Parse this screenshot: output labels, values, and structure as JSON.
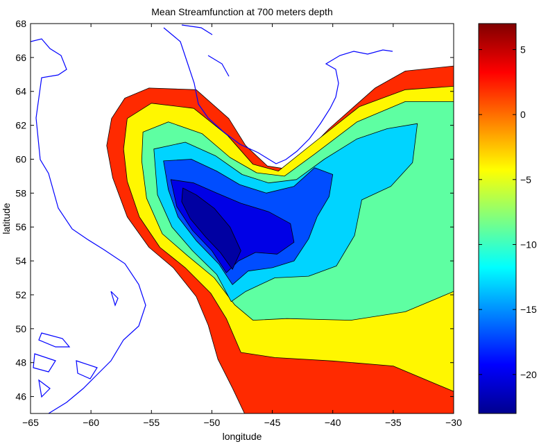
{
  "chart_data": {
    "type": "heatmap",
    "title": "Mean Streamfunction at 700 meters depth",
    "xlabel": "longitude",
    "ylabel": "latitude",
    "xlim": [
      -65,
      -30
    ],
    "ylim": [
      45,
      68
    ],
    "xticks": [
      -65,
      -60,
      -55,
      -50,
      -45,
      -40,
      -35,
      -30
    ],
    "yticks": [
      46,
      48,
      50,
      52,
      54,
      56,
      58,
      60,
      62,
      64,
      66,
      68
    ],
    "colorbar": {
      "range": [
        -23,
        7
      ],
      "ticks": [
        5,
        0,
        -5,
        -10,
        -15,
        -20
      ],
      "colormap": "jet"
    },
    "contour_regions": [
      {
        "level": 2,
        "polygon": [
          [
            -58.3,
            62.4
          ],
          [
            -57.2,
            63.6
          ],
          [
            -55.2,
            64.2
          ],
          [
            -51.3,
            64.1
          ],
          [
            -48.6,
            62.4
          ],
          [
            -47.2,
            60.8
          ],
          [
            -45.4,
            59.6
          ],
          [
            -43.6,
            59.4
          ],
          [
            -40.3,
            61.8
          ],
          [
            -36.5,
            64.2
          ],
          [
            -34,
            65.2
          ],
          [
            -30,
            65.5
          ],
          [
            -30,
            45
          ],
          [
            -47.3,
            45
          ],
          [
            -48.3,
            46.5
          ],
          [
            -49.5,
            48.2
          ],
          [
            -50.3,
            50.2
          ],
          [
            -51.3,
            51.9
          ],
          [
            -53.2,
            53.6
          ],
          [
            -55.2,
            54.8
          ],
          [
            -57,
            56.6
          ],
          [
            -58.2,
            58.9
          ],
          [
            -58.7,
            60.8
          ]
        ]
      },
      {
        "level": -4,
        "polygon": [
          [
            -57,
            62.4
          ],
          [
            -55,
            63.3
          ],
          [
            -51.5,
            63
          ],
          [
            -48.7,
            61.4
          ],
          [
            -46.6,
            59.7
          ],
          [
            -44.5,
            59.3
          ],
          [
            -41.7,
            60.9
          ],
          [
            -37.8,
            63.1
          ],
          [
            -34,
            64.1
          ],
          [
            -30,
            64.3
          ],
          [
            -30,
            46.3
          ],
          [
            -35,
            47.8
          ],
          [
            -40,
            48.1
          ],
          [
            -44.8,
            48.3
          ],
          [
            -47.6,
            48.6
          ],
          [
            -48.8,
            50.6
          ],
          [
            -50.1,
            52.1
          ],
          [
            -52.2,
            53.6
          ],
          [
            -54.3,
            54.8
          ],
          [
            -56,
            56.6
          ],
          [
            -57,
            58.7
          ],
          [
            -57.3,
            60.6
          ]
        ]
      },
      {
        "level": -9,
        "polygon": [
          [
            -55.7,
            61.6
          ],
          [
            -53.6,
            62.2
          ],
          [
            -50.8,
            61.5
          ],
          [
            -48.5,
            60.1
          ],
          [
            -46.3,
            59.2
          ],
          [
            -44,
            59
          ],
          [
            -41.5,
            60.3
          ],
          [
            -38,
            62.2
          ],
          [
            -34,
            63.4
          ],
          [
            -30,
            63.4
          ],
          [
            -30,
            52.2
          ],
          [
            -34,
            51
          ],
          [
            -38.5,
            50.5
          ],
          [
            -43.8,
            50.6
          ],
          [
            -46.6,
            50.5
          ],
          [
            -48.1,
            51.4
          ],
          [
            -49.8,
            53
          ],
          [
            -52,
            54.3
          ],
          [
            -54.1,
            55.6
          ],
          [
            -55.4,
            57.7
          ],
          [
            -55.8,
            59.9
          ]
        ]
      },
      {
        "level": -13,
        "polygon": [
          [
            -54.8,
            60.6
          ],
          [
            -52.2,
            61
          ],
          [
            -49.7,
            60.2
          ],
          [
            -47.5,
            59.1
          ],
          [
            -45.3,
            58.6
          ],
          [
            -43,
            58.8
          ],
          [
            -40.7,
            60
          ],
          [
            -38,
            61.2
          ],
          [
            -35.5,
            61.8
          ],
          [
            -33,
            62.1
          ],
          [
            -33.4,
            59.8
          ],
          [
            -35.2,
            58.4
          ],
          [
            -37.6,
            57.6
          ],
          [
            -38.2,
            55.5
          ],
          [
            -39.7,
            53.7
          ],
          [
            -42,
            53.1
          ],
          [
            -44.8,
            53
          ],
          [
            -47.2,
            52.2
          ],
          [
            -48.4,
            51.6
          ],
          [
            -49.6,
            53.2
          ],
          [
            -51.6,
            54.6
          ],
          [
            -53.3,
            56
          ],
          [
            -54.5,
            57.9
          ]
        ]
      },
      {
        "level": -17,
        "polygon": [
          [
            -54,
            59.9
          ],
          [
            -51.7,
            60
          ],
          [
            -49.6,
            59.3
          ],
          [
            -47.7,
            58.5
          ],
          [
            -45.5,
            58
          ],
          [
            -43.2,
            58.4
          ],
          [
            -41.5,
            59.5
          ],
          [
            -40,
            59.1
          ],
          [
            -40.3,
            57.8
          ],
          [
            -41.3,
            56.6
          ],
          [
            -42,
            55.3
          ],
          [
            -43.2,
            54
          ],
          [
            -45,
            53.6
          ],
          [
            -47,
            53.4
          ],
          [
            -48.3,
            52.6
          ],
          [
            -49.4,
            53.8
          ],
          [
            -51.3,
            55.2
          ],
          [
            -52.8,
            56.6
          ],
          [
            -53.6,
            58.2
          ]
        ]
      },
      {
        "level": -20,
        "polygon": [
          [
            -53.4,
            58.8
          ],
          [
            -51.5,
            58.6
          ],
          [
            -49.6,
            58
          ],
          [
            -47.6,
            57.4
          ],
          [
            -45.3,
            56.9
          ],
          [
            -43.5,
            56.2
          ],
          [
            -43.2,
            55.1
          ],
          [
            -44.6,
            54.4
          ],
          [
            -46.4,
            54.5
          ],
          [
            -47.8,
            54
          ],
          [
            -48.8,
            53.3
          ],
          [
            -50,
            54.6
          ],
          [
            -51.6,
            55.8
          ],
          [
            -52.9,
            57.2
          ]
        ]
      },
      {
        "level": -22,
        "polygon": [
          [
            -52.4,
            58.3
          ],
          [
            -51.3,
            57.9
          ],
          [
            -49.8,
            57.1
          ],
          [
            -48.5,
            56
          ],
          [
            -47.6,
            54.6
          ],
          [
            -48.3,
            53.5
          ],
          [
            -49.3,
            54.5
          ],
          [
            -50.5,
            55.4
          ],
          [
            -51.8,
            56.5
          ],
          [
            -52.5,
            57.5
          ]
        ]
      }
    ]
  }
}
